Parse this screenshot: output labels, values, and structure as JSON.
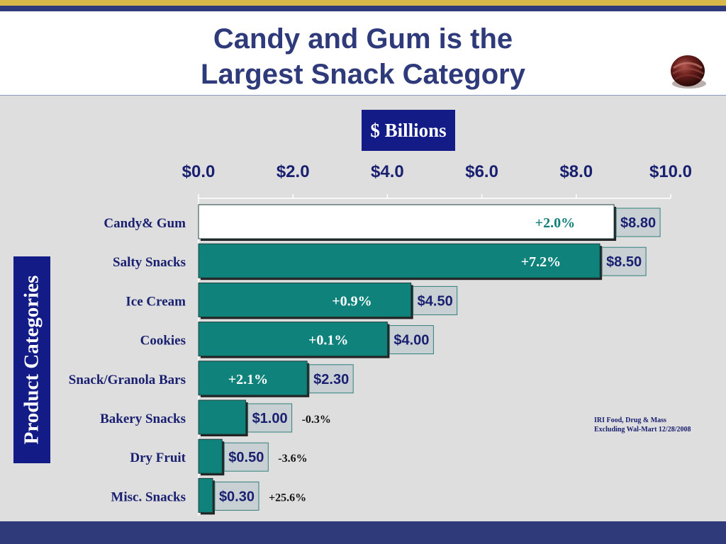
{
  "header": {
    "title_line1": "Candy and Gum is the",
    "title_line2": "Largest Snack Category",
    "logo_icon": "chocolate-truffle-icon"
  },
  "unit_label": "$ Billions",
  "source_note": {
    "line1": "IRI Food, Drug & Mass",
    "line2": "Excluding Wal-Mart 12/28/2008"
  },
  "colors": {
    "title": "#2e3a7a",
    "bar_fill": "#0f837b",
    "highlight_bar_fill": "#ffffff",
    "label_box_fill": "#c9d0d4",
    "label_box_border": "#2f7f7a",
    "navy_box": "#131b87",
    "panel_background": "#dedede",
    "growth_text_teal": "#0f7f78",
    "gold_stripe": "#d9b84a"
  },
  "chart_data": {
    "type": "bar",
    "orientation": "horizontal",
    "ylabel": "Product Categories",
    "xlim": [
      0,
      10
    ],
    "x_ticks": [
      "$0.0",
      "$2.0",
      "$4.0",
      "$6.0",
      "$8.0",
      "$10.0"
    ],
    "categories": [
      "Candy& Gum",
      "Salty Snacks",
      "Ice Cream",
      "Cookies",
      "Snack/Granola Bars",
      "Bakery Snacks",
      "Dry Fruit",
      "Misc. Snacks"
    ],
    "values": [
      8.8,
      8.5,
      4.5,
      4.0,
      2.3,
      1.0,
      0.5,
      0.3
    ],
    "value_labels": [
      "$8.80",
      "$8.50",
      "$4.50",
      "$4.00",
      "$2.30",
      "$1.00",
      "$0.50",
      "$0.30"
    ],
    "growth_labels": [
      "+2.0%",
      "+7.2%",
      "+0.9%",
      "+0.1%",
      "+2.1%",
      "-0.3%",
      "-3.6%",
      "+25.6%"
    ],
    "growth_inside_bar": [
      true,
      true,
      true,
      true,
      true,
      false,
      false,
      false
    ],
    "highlighted": [
      true,
      false,
      false,
      false,
      false,
      false,
      false,
      false
    ],
    "grid": false,
    "legend": "none"
  }
}
